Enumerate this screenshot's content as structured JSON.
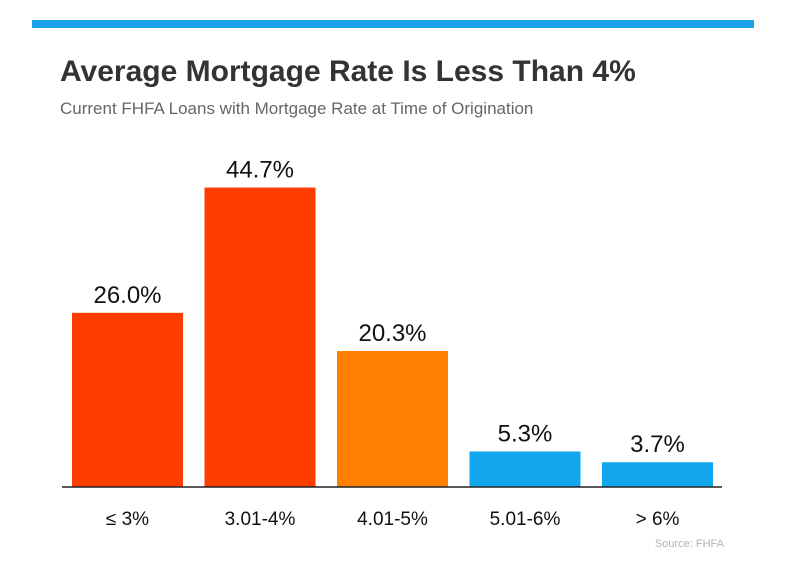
{
  "title": "Average Mortgage Rate Is Less Than 4%",
  "subtitle": "Current FHFA Loans with Mortgage Rate at Time of Origination",
  "source": "Source: FHFA",
  "colors": {
    "accent": "#1aa3e8",
    "red": "#ff3d00",
    "orange": "#ff8000",
    "blue": "#12a6ef",
    "text": "#333333"
  },
  "chart_data": {
    "type": "bar",
    "categories": [
      "≤ 3%",
      "3.01-4%",
      "4.01-5%",
      "5.01-6%",
      "> 6%"
    ],
    "values": [
      26.0,
      44.7,
      20.3,
      5.3,
      3.7
    ],
    "labels": [
      "26.0%",
      "44.7%",
      "20.3%",
      "5.3%",
      "3.7%"
    ],
    "colors": [
      "#ff3d00",
      "#ff3d00",
      "#ff8000",
      "#12a6ef",
      "#12a6ef"
    ],
    "title": "Average Mortgage Rate Is Less Than 4%",
    "subtitle": "Current FHFA Loans with Mortgage Rate at Time of Origination",
    "unit": "%",
    "grid": false,
    "legend": "none"
  }
}
